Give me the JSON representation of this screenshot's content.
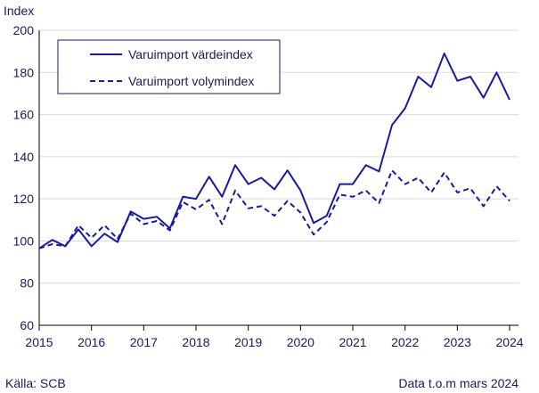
{
  "chart_data": {
    "type": "line",
    "ylabel": "Index",
    "ylim": [
      60,
      200
    ],
    "yticks": [
      60,
      80,
      100,
      120,
      140,
      160,
      180,
      200
    ],
    "xlim": [
      2015,
      2024.17
    ],
    "xticks": [
      2015,
      2016,
      2017,
      2018,
      2019,
      2020,
      2021,
      2022,
      2023,
      2024
    ],
    "grid": "horizontal",
    "legend_position": "top-left",
    "series": [
      {
        "name": "Varuimport värdeindex",
        "style": "solid",
        "color": "#1a1a9e",
        "x": [
          2015.0,
          2015.25,
          2015.5,
          2015.75,
          2016.0,
          2016.25,
          2016.5,
          2016.75,
          2017.0,
          2017.25,
          2017.5,
          2017.75,
          2018.0,
          2018.25,
          2018.5,
          2018.75,
          2019.0,
          2019.25,
          2019.5,
          2019.75,
          2020.0,
          2020.25,
          2020.5,
          2020.75,
          2021.0,
          2021.25,
          2021.5,
          2021.75,
          2022.0,
          2022.25,
          2022.5,
          2022.75,
          2023.0,
          2023.25,
          2023.5,
          2023.75,
          2024.0
        ],
        "y": [
          96.5,
          100.5,
          97.5,
          105.5,
          97.5,
          103.5,
          99.5,
          114,
          110.5,
          111.5,
          106,
          121,
          120,
          130.5,
          121,
          136,
          127,
          130,
          124.5,
          133.5,
          124,
          108.5,
          112,
          127,
          127,
          136,
          133,
          155,
          163,
          178,
          173,
          189,
          176,
          178,
          168,
          180,
          167
        ]
      },
      {
        "name": "Varuimport volymindex",
        "style": "dashed",
        "color": "#1a1a9e",
        "x": [
          2015.0,
          2015.25,
          2015.5,
          2015.75,
          2016.0,
          2016.25,
          2016.5,
          2016.75,
          2017.0,
          2017.25,
          2017.5,
          2017.75,
          2018.0,
          2018.25,
          2018.5,
          2018.75,
          2019.0,
          2019.25,
          2019.5,
          2019.75,
          2020.0,
          2020.25,
          2020.5,
          2020.75,
          2021.0,
          2021.25,
          2021.5,
          2021.75,
          2022.0,
          2022.25,
          2022.5,
          2022.75,
          2023.0,
          2023.25,
          2023.5,
          2023.75,
          2024.0
        ],
        "y": [
          96.5,
          98.5,
          97.5,
          107.5,
          101.5,
          107.5,
          101,
          113,
          108,
          109.5,
          105,
          118.5,
          115,
          119.5,
          108,
          124,
          115.5,
          116.5,
          112,
          119,
          113.5,
          103,
          109,
          122,
          121,
          124,
          118,
          133.5,
          127,
          130,
          123,
          132.5,
          123,
          125,
          116.5,
          126,
          119
        ]
      }
    ]
  },
  "footer": {
    "source": "Källa: SCB",
    "data_note": "Data t.o.m mars 2024"
  }
}
